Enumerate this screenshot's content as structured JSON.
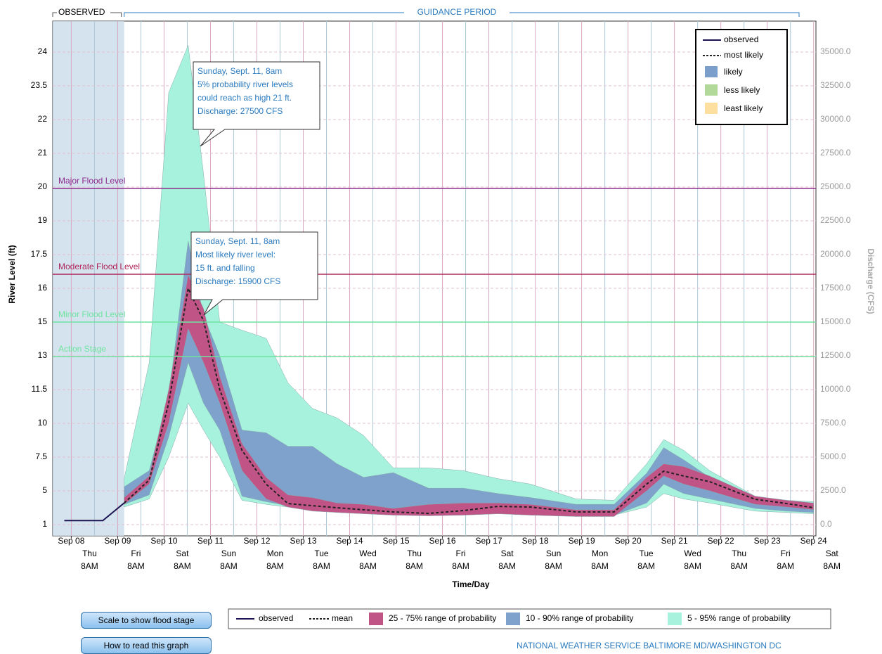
{
  "chart_data": {
    "type": "hydrograph",
    "header_observed": "OBSERVED",
    "header_guidance": "GUIDANCE PERIOD",
    "ylabel": "River Level (ft)",
    "y2label": "Discharge (CFS)",
    "xlabel": "Time/Day",
    "xlim": [
      -0.4,
      16.05
    ],
    "y2lim": [
      -833,
      37292
    ],
    "observed_end": 1.14,
    "xticks": [
      {
        "value": 0,
        "label": "Sep 08"
      },
      {
        "value": 1,
        "label": "Sep 09"
      },
      {
        "value": 2,
        "label": "Sep 10"
      },
      {
        "value": 3,
        "label": "Sep 11"
      },
      {
        "value": 4,
        "label": "Sep 12"
      },
      {
        "value": 5,
        "label": "Sep 13"
      },
      {
        "value": 6,
        "label": "Sep 14"
      },
      {
        "value": 7,
        "label": "Sep 15"
      },
      {
        "value": 8,
        "label": "Sep 16"
      },
      {
        "value": 9,
        "label": "Sep 17"
      },
      {
        "value": 10,
        "label": "Sep 18"
      },
      {
        "value": 11,
        "label": "Sep 19"
      },
      {
        "value": 12,
        "label": "Sep 20"
      },
      {
        "value": 13,
        "label": "Sep 21"
      },
      {
        "value": 14,
        "label": "Sep 22"
      },
      {
        "value": 15,
        "label": "Sep 23"
      },
      {
        "value": 16,
        "label": "Sep 24"
      }
    ],
    "weekdays": [
      "Thu",
      "Fri",
      "Sat",
      "Sun",
      "Mon",
      "Tue",
      "Wed",
      "Thu",
      "Fri",
      "Sat",
      "Sun",
      "Mon",
      "Tue",
      "Wed",
      "Thu",
      "Fri",
      "Sat"
    ],
    "hour_label": "8AM",
    "y2ticks": [
      {
        "value": 0,
        "label": "0.0"
      },
      {
        "value": 2500,
        "label": "2500.0"
      },
      {
        "value": 5000,
        "label": "5000.0"
      },
      {
        "value": 7500,
        "label": "7500.0"
      },
      {
        "value": 10000,
        "label": "10000.0"
      },
      {
        "value": 12500,
        "label": "12500.0"
      },
      {
        "value": 15000,
        "label": "15000.0"
      },
      {
        "value": 17500,
        "label": "17500.0"
      },
      {
        "value": 20000,
        "label": "20000.0"
      },
      {
        "value": 22500,
        "label": "22500.0"
      },
      {
        "value": 25000,
        "label": "25000.0"
      },
      {
        "value": 27500,
        "label": "27500.0"
      },
      {
        "value": 30000,
        "label": "30000.0"
      },
      {
        "value": 32500,
        "label": "32500.0"
      },
      {
        "value": 35000,
        "label": "35000.0"
      }
    ],
    "stage_ticks": [
      1,
      5,
      7.5,
      10,
      11.5,
      13,
      15,
      16,
      17.5,
      19,
      20,
      21,
      22,
      23.5,
      24
    ],
    "flood_levels": [
      {
        "label": "Major Flood Level",
        "value": 24900,
        "color": "#8e2a8e"
      },
      {
        "label": "Moderate Flood Level",
        "value": 18540,
        "color": "#b0285a"
      },
      {
        "label": "Minor Flood Level",
        "value": 15000,
        "color": "#6fe3a0"
      },
      {
        "label": "Action Stage",
        "value": 12450,
        "color": "#6fe3a0"
      }
    ],
    "x": [
      1.14,
      1.68,
      2.1,
      2.52,
      2.85,
      3.2,
      3.68,
      4.2,
      4.67,
      5.2,
      5.73,
      6.3,
      6.94,
      7.7,
      8.45,
      9.2,
      9.9,
      10.88,
      11.7,
      12.4,
      12.77,
      13.2,
      13.76,
      14.74,
      15.42,
      16
    ],
    "series": [
      {
        "name": "5 - 95% range of probability",
        "color": "#a6f2dc",
        "upper": [
          3400,
          12000,
          32000,
          35500,
          26000,
          15000,
          14400,
          13800,
          10500,
          8600,
          7900,
          6600,
          4200,
          4200,
          4000,
          3400,
          3000,
          1900,
          1800,
          4500,
          6300,
          5500,
          4000,
          2100,
          1800,
          1700
        ],
        "lower": [
          1300,
          1900,
          5000,
          9000,
          7000,
          5000,
          1800,
          1500,
          1300,
          1100,
          1000,
          900,
          800,
          700,
          800,
          900,
          800,
          700,
          700,
          1300,
          2300,
          1900,
          1600,
          1000,
          900,
          800
        ]
      },
      {
        "name": "10 - 90% range of probability",
        "color": "#7ea2cc",
        "upper": [
          2800,
          4000,
          9500,
          21000,
          15500,
          12500,
          7000,
          6800,
          5800,
          5800,
          4500,
          3500,
          3850,
          2700,
          2700,
          2300,
          2000,
          1500,
          1500,
          3800,
          5700,
          4800,
          3500,
          1900,
          1600,
          1500
        ],
        "lower": [
          1500,
          2200,
          6500,
          12000,
          9000,
          7000,
          2100,
          1700,
          1400,
          1200,
          1100,
          900,
          800,
          750,
          850,
          1000,
          900,
          700,
          700,
          1600,
          3000,
          2300,
          1900,
          1200,
          1000,
          900
        ]
      },
      {
        "name": "25 - 75% range of probability",
        "color": "#c05487",
        "upper": [
          2000,
          3600,
          10000,
          18500,
          16000,
          11000,
          6000,
          3500,
          2200,
          2000,
          1600,
          1500,
          1200,
          1500,
          1600,
          1600,
          1500,
          1100,
          1100,
          3500,
          4500,
          4300,
          3600,
          2100,
          1800,
          1600
        ],
        "lower": [
          1500,
          3000,
          7500,
          14500,
          12000,
          9000,
          4000,
          1900,
          1300,
          1000,
          900,
          800,
          700,
          650,
          700,
          800,
          700,
          600,
          600,
          2500,
          3600,
          3000,
          2500,
          1500,
          1300,
          1100
        ]
      }
    ],
    "mean": {
      "name": "mean",
      "legend_name": "most likely",
      "color": "#222",
      "values": [
        1600,
        3300,
        9000,
        17500,
        15100,
        10000,
        5500,
        3000,
        1560,
        1400,
        1250,
        1100,
        940,
        830,
        1040,
        1350,
        1300,
        940,
        940,
        3000,
        3960,
        3600,
        3180,
        1875,
        1560,
        1250
      ]
    },
    "observed": {
      "name": "observed",
      "color": "#1c1450",
      "x": [
        -0.15,
        0.68,
        1.14
      ],
      "values": [
        300,
        300,
        1600
      ]
    },
    "legend_inner": [
      {
        "label": "likely",
        "color": "#7b9fca"
      },
      {
        "label": "less likely",
        "color": "#b3d99a"
      },
      {
        "label": "least likely",
        "color": "#fde0a0"
      }
    ],
    "annotations": [
      [
        "Sunday, Sept. 11, 8am",
        "5% probability river levels",
        "could reach as high 21 ft.",
        "Discharge: 27500 CFS"
      ],
      [
        "Sunday, Sept. 11, 8am",
        "Most likely river level:",
        "15 ft. and falling",
        "Discharge: 15900 CFS"
      ]
    ]
  },
  "buttons": [
    "Scale to show flood stage",
    "How to read this graph"
  ],
  "footer": "NATIONAL WEATHER SERVICE BALTIMORE MD/WASHINGTON DC"
}
